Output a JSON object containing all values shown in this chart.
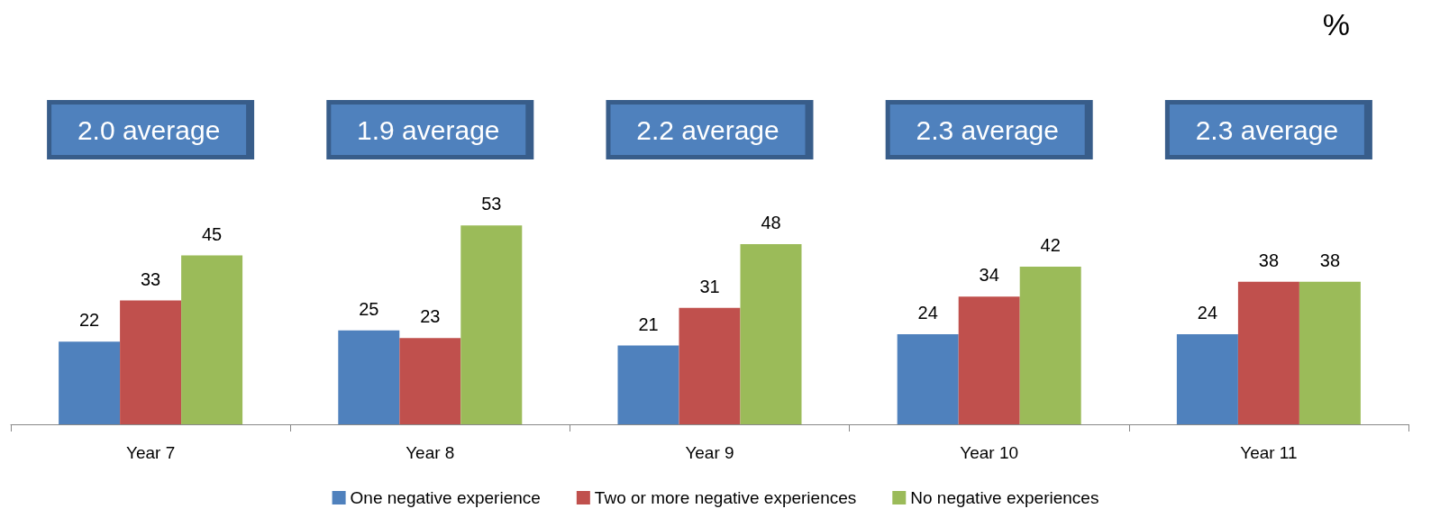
{
  "chart_data": {
    "type": "bar",
    "categories": [
      "Year 7",
      "Year 8",
      "Year 9",
      "Year 10",
      "Year 11"
    ],
    "series": [
      {
        "name": "One negative experience",
        "color": "#4f81bd",
        "values": [
          22,
          25,
          21,
          24,
          24
        ]
      },
      {
        "name": "Two or more negative experiences",
        "color": "#c0504d",
        "values": [
          33,
          23,
          31,
          34,
          38
        ]
      },
      {
        "name": "No negative experiences",
        "color": "#9bbb59",
        "values": [
          45,
          53,
          48,
          42,
          38
        ]
      }
    ],
    "data_labels": true,
    "legend": "bottom",
    "annotations": [
      "2.0 average",
      "1.9 average",
      "2.2 average",
      "2.3 average",
      "2.3 average",
      "%"
    ]
  }
}
